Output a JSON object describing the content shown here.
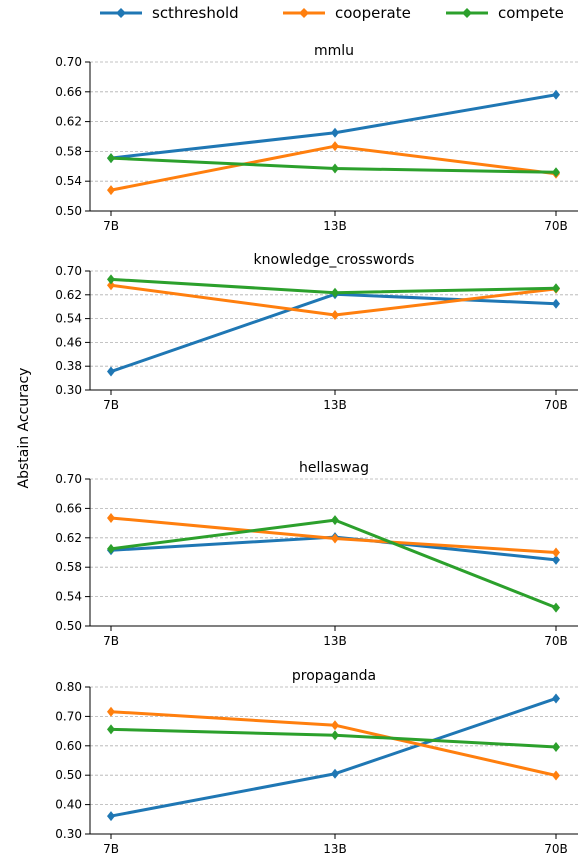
{
  "ylabel": "Abstain Accuracy",
  "legend": [
    {
      "name": "scthreshold",
      "color": "#1f77b4"
    },
    {
      "name": "cooperate",
      "color": "#ff7f0e"
    },
    {
      "name": "compete",
      "color": "#2ca02c"
    }
  ],
  "chart_data": [
    {
      "type": "line",
      "title": "mmlu",
      "categories": [
        "7B",
        "13B",
        "70B"
      ],
      "ylim": [
        0.5,
        0.7
      ],
      "yticks": [
        "0.50",
        "0.54",
        "0.58",
        "0.62",
        "0.66",
        "0.70"
      ],
      "grid": true,
      "series": [
        {
          "name": "scthreshold",
          "values": [
            0.571,
            0.605,
            0.656
          ]
        },
        {
          "name": "cooperate",
          "values": [
            0.528,
            0.587,
            0.55
          ]
        },
        {
          "name": "compete",
          "values": [
            0.571,
            0.557,
            0.552
          ]
        }
      ]
    },
    {
      "type": "line",
      "title": "knowledge_crosswords",
      "categories": [
        "7B",
        "13B",
        "70B"
      ],
      "ylim": [
        0.3,
        0.7
      ],
      "yticks": [
        "0.30",
        "0.38",
        "0.46",
        "0.54",
        "0.62",
        "0.70"
      ],
      "grid": true,
      "series": [
        {
          "name": "scthreshold",
          "values": [
            0.362,
            0.622,
            0.59
          ]
        },
        {
          "name": "cooperate",
          "values": [
            0.652,
            0.552,
            0.64
          ]
        },
        {
          "name": "compete",
          "values": [
            0.672,
            0.627,
            0.642
          ]
        }
      ]
    },
    {
      "type": "line",
      "title": "hellaswag",
      "categories": [
        "7B",
        "13B",
        "70B"
      ],
      "ylim": [
        0.5,
        0.7
      ],
      "yticks": [
        "0.50",
        "0.54",
        "0.58",
        "0.62",
        "0.66",
        "0.70"
      ],
      "grid": true,
      "series": [
        {
          "name": "scthreshold",
          "values": [
            0.603,
            0.621,
            0.59
          ]
        },
        {
          "name": "cooperate",
          "values": [
            0.647,
            0.619,
            0.6
          ]
        },
        {
          "name": "compete",
          "values": [
            0.605,
            0.644,
            0.525
          ]
        }
      ]
    },
    {
      "type": "line",
      "title": "propaganda",
      "categories": [
        "7B",
        "13B",
        "70B"
      ],
      "ylim": [
        0.3,
        0.8
      ],
      "yticks": [
        "0.30",
        "0.40",
        "0.50",
        "0.60",
        "0.70",
        "0.80"
      ],
      "grid": true,
      "series": [
        {
          "name": "scthreshold",
          "values": [
            0.361,
            0.505,
            0.761
          ]
        },
        {
          "name": "cooperate",
          "values": [
            0.716,
            0.67,
            0.499
          ]
        },
        {
          "name": "compete",
          "values": [
            0.656,
            0.636,
            0.596
          ]
        }
      ]
    }
  ]
}
